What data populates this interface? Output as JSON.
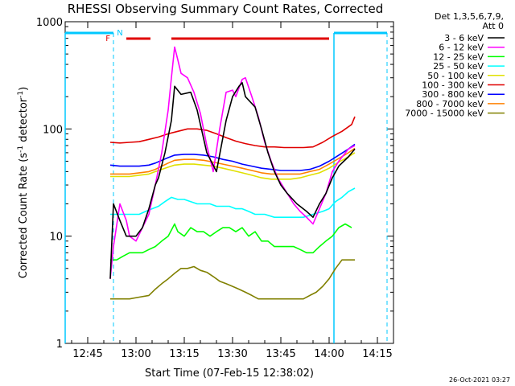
{
  "chart_data": {
    "type": "line",
    "title": "RHESSI Observing Summary Count Rates, Corrected",
    "xlabel": "Start Time (07-Feb-15 12:38:02)",
    "ylabel_main": "Corrected Count Rate (s",
    "ylabel_exp1": "-1",
    "ylabel_mid": " detector",
    "ylabel_exp2": "-1",
    "ylabel_end": ")",
    "y_scale": "log",
    "ylim": [
      1,
      1000
    ],
    "xlim_minutes": [
      38,
      140
    ],
    "x_ticks": [
      {
        "m": 45,
        "label": "12:45"
      },
      {
        "m": 60,
        "label": "13:00"
      },
      {
        "m": 75,
        "label": "13:15"
      },
      {
        "m": 90,
        "label": "13:30"
      },
      {
        "m": 105,
        "label": "13:45"
      },
      {
        "m": 120,
        "label": "14:00"
      },
      {
        "m": 135,
        "label": "14:15"
      }
    ],
    "y_ticks": [
      {
        "v": 1,
        "label": "1"
      },
      {
        "v": 10,
        "label": "10"
      },
      {
        "v": 100,
        "label": "100"
      },
      {
        "v": 1000,
        "label": "1000"
      }
    ],
    "legend_header_1": "Det 1,3,5,6,7,9,",
    "legend_header_2": "Att 0",
    "timestamp": "26-Oct-2021 03:27",
    "flags": {
      "F_label": "F",
      "N_label": "N",
      "F_color": "#e00000",
      "N_color": "#00c8ff",
      "f_segments": [
        [
          57,
          64.5
        ],
        [
          71,
          120
        ]
      ],
      "n_segments": [
        [
          38,
          53
        ],
        [
          121.5,
          138
        ]
      ],
      "dashed_vlines": [
        53,
        138
      ],
      "solid_vlines": [
        38,
        121.5
      ]
    },
    "series": [
      {
        "name": "3 - 6 keV",
        "color": "#000000",
        "points": [
          [
            52,
            4
          ],
          [
            53,
            20
          ],
          [
            55,
            14
          ],
          [
            57,
            10
          ],
          [
            60,
            10
          ],
          [
            62,
            12
          ],
          [
            64,
            18
          ],
          [
            66,
            30
          ],
          [
            67,
            35
          ],
          [
            69,
            60
          ],
          [
            71,
            120
          ],
          [
            72,
            250
          ],
          [
            74,
            210
          ],
          [
            77,
            220
          ],
          [
            79,
            150
          ],
          [
            82,
            60
          ],
          [
            85,
            40
          ],
          [
            88,
            120
          ],
          [
            90,
            200
          ],
          [
            92,
            250
          ],
          [
            93,
            270
          ],
          [
            94,
            200
          ],
          [
            97,
            160
          ],
          [
            99,
            100
          ],
          [
            101,
            60
          ],
          [
            103,
            40
          ],
          [
            105,
            30
          ],
          [
            107,
            25
          ],
          [
            110,
            20
          ],
          [
            113,
            17
          ],
          [
            115,
            15
          ],
          [
            117,
            20
          ],
          [
            119,
            25
          ],
          [
            121,
            35
          ],
          [
            123,
            45
          ],
          [
            126,
            55
          ],
          [
            128,
            65
          ]
        ]
      },
      {
        "name": "6 - 12 keV",
        "color": "#ff00ff",
        "points": [
          [
            52,
            4
          ],
          [
            53,
            8
          ],
          [
            55,
            20
          ],
          [
            57,
            14
          ],
          [
            58,
            10
          ],
          [
            60,
            9
          ],
          [
            62,
            12
          ],
          [
            64,
            16
          ],
          [
            66,
            30
          ],
          [
            68,
            60
          ],
          [
            70,
            150
          ],
          [
            71,
            300
          ],
          [
            72,
            580
          ],
          [
            73,
            440
          ],
          [
            74,
            330
          ],
          [
            76,
            300
          ],
          [
            78,
            220
          ],
          [
            80,
            140
          ],
          [
            82,
            70
          ],
          [
            84,
            40
          ],
          [
            86,
            100
          ],
          [
            88,
            220
          ],
          [
            90,
            230
          ],
          [
            91,
            200
          ],
          [
            93,
            290
          ],
          [
            94,
            300
          ],
          [
            96,
            200
          ],
          [
            98,
            130
          ],
          [
            100,
            75
          ],
          [
            102,
            50
          ],
          [
            104,
            35
          ],
          [
            107,
            25
          ],
          [
            109,
            20
          ],
          [
            111,
            17
          ],
          [
            113,
            15
          ],
          [
            115,
            13
          ],
          [
            117,
            18
          ],
          [
            119,
            25
          ],
          [
            121,
            40
          ],
          [
            123,
            50
          ],
          [
            126,
            65
          ],
          [
            128,
            70
          ]
        ]
      },
      {
        "name": "12 - 25 keV",
        "color": "#00ff00",
        "points": [
          [
            52,
            6
          ],
          [
            54,
            6
          ],
          [
            56,
            6.5
          ],
          [
            58,
            7
          ],
          [
            60,
            7
          ],
          [
            62,
            7
          ],
          [
            64,
            7.5
          ],
          [
            66,
            8
          ],
          [
            68,
            9
          ],
          [
            70,
            10
          ],
          [
            72,
            13
          ],
          [
            73,
            11
          ],
          [
            75,
            10
          ],
          [
            77,
            12
          ],
          [
            79,
            11
          ],
          [
            81,
            11
          ],
          [
            83,
            10
          ],
          [
            85,
            11
          ],
          [
            87,
            12
          ],
          [
            89,
            12
          ],
          [
            91,
            11
          ],
          [
            93,
            12
          ],
          [
            95,
            10
          ],
          [
            97,
            11
          ],
          [
            99,
            9
          ],
          [
            101,
            9
          ],
          [
            103,
            8
          ],
          [
            105,
            8
          ],
          [
            107,
            8
          ],
          [
            109,
            8
          ],
          [
            111,
            7.5
          ],
          [
            113,
            7
          ],
          [
            115,
            7
          ],
          [
            117,
            8
          ],
          [
            119,
            9
          ],
          [
            121,
            10
          ],
          [
            123,
            12
          ],
          [
            125,
            13
          ],
          [
            127,
            12
          ]
        ]
      },
      {
        "name": "25 - 50 keV",
        "color": "#00ffff",
        "points": [
          [
            52,
            16
          ],
          [
            55,
            16
          ],
          [
            58,
            16
          ],
          [
            61,
            16
          ],
          [
            63,
            17
          ],
          [
            65,
            18
          ],
          [
            67,
            19
          ],
          [
            69,
            21
          ],
          [
            71,
            23
          ],
          [
            73,
            22
          ],
          [
            75,
            22
          ],
          [
            77,
            21
          ],
          [
            79,
            20
          ],
          [
            81,
            20
          ],
          [
            83,
            20
          ],
          [
            85,
            19
          ],
          [
            87,
            19
          ],
          [
            89,
            19
          ],
          [
            91,
            18
          ],
          [
            93,
            18
          ],
          [
            95,
            17
          ],
          [
            97,
            16
          ],
          [
            100,
            16
          ],
          [
            103,
            15
          ],
          [
            106,
            15
          ],
          [
            109,
            15
          ],
          [
            112,
            15
          ],
          [
            115,
            16
          ],
          [
            118,
            17
          ],
          [
            120,
            18
          ],
          [
            122,
            21
          ],
          [
            124,
            23
          ],
          [
            126,
            26
          ],
          [
            128,
            28
          ]
        ]
      },
      {
        "name": "50 - 100 keV",
        "color": "#e0e000",
        "points": [
          [
            52,
            36
          ],
          [
            55,
            36
          ],
          [
            58,
            36
          ],
          [
            61,
            37
          ],
          [
            64,
            38
          ],
          [
            66,
            40
          ],
          [
            68,
            42
          ],
          [
            70,
            44
          ],
          [
            72,
            46
          ],
          [
            75,
            47
          ],
          [
            78,
            47
          ],
          [
            81,
            46
          ],
          [
            84,
            45
          ],
          [
            87,
            43
          ],
          [
            90,
            41
          ],
          [
            93,
            39
          ],
          [
            96,
            37
          ],
          [
            99,
            35
          ],
          [
            102,
            34
          ],
          [
            105,
            34
          ],
          [
            108,
            34
          ],
          [
            111,
            35
          ],
          [
            114,
            37
          ],
          [
            117,
            39
          ],
          [
            120,
            43
          ],
          [
            123,
            49
          ],
          [
            126,
            55
          ],
          [
            128,
            60
          ]
        ]
      },
      {
        "name": "100 - 300 keV",
        "color": "#e00000",
        "points": [
          [
            52,
            75
          ],
          [
            55,
            74
          ],
          [
            58,
            75
          ],
          [
            61,
            76
          ],
          [
            64,
            80
          ],
          [
            67,
            84
          ],
          [
            70,
            90
          ],
          [
            73,
            95
          ],
          [
            76,
            100
          ],
          [
            79,
            100
          ],
          [
            82,
            97
          ],
          [
            85,
            90
          ],
          [
            88,
            83
          ],
          [
            91,
            77
          ],
          [
            94,
            73
          ],
          [
            97,
            70
          ],
          [
            100,
            68
          ],
          [
            103,
            68
          ],
          [
            106,
            67
          ],
          [
            109,
            67
          ],
          [
            112,
            67
          ],
          [
            115,
            68
          ],
          [
            118,
            75
          ],
          [
            121,
            85
          ],
          [
            124,
            95
          ],
          [
            127,
            110
          ],
          [
            128,
            130
          ]
        ]
      },
      {
        "name": "300 - 800 keV",
        "color": "#0000ff",
        "points": [
          [
            52,
            46
          ],
          [
            55,
            45
          ],
          [
            58,
            45
          ],
          [
            61,
            45
          ],
          [
            64,
            46
          ],
          [
            66,
            48
          ],
          [
            68,
            51
          ],
          [
            70,
            54
          ],
          [
            72,
            57
          ],
          [
            75,
            58
          ],
          [
            78,
            58
          ],
          [
            81,
            57
          ],
          [
            84,
            55
          ],
          [
            87,
            52
          ],
          [
            90,
            50
          ],
          [
            93,
            47
          ],
          [
            96,
            45
          ],
          [
            99,
            43
          ],
          [
            102,
            42
          ],
          [
            105,
            41
          ],
          [
            108,
            41
          ],
          [
            111,
            41
          ],
          [
            114,
            42
          ],
          [
            117,
            45
          ],
          [
            120,
            50
          ],
          [
            123,
            57
          ],
          [
            126,
            65
          ],
          [
            128,
            72
          ]
        ]
      },
      {
        "name": "800 - 7000 keV",
        "color": "#ff8000",
        "points": [
          [
            52,
            38
          ],
          [
            55,
            38
          ],
          [
            58,
            38
          ],
          [
            61,
            39
          ],
          [
            64,
            40
          ],
          [
            66,
            42
          ],
          [
            68,
            45
          ],
          [
            70,
            48
          ],
          [
            72,
            51
          ],
          [
            75,
            52
          ],
          [
            78,
            52
          ],
          [
            81,
            51
          ],
          [
            84,
            49
          ],
          [
            87,
            47
          ],
          [
            90,
            45
          ],
          [
            93,
            43
          ],
          [
            96,
            41
          ],
          [
            99,
            39
          ],
          [
            102,
            38
          ],
          [
            105,
            38
          ],
          [
            108,
            38
          ],
          [
            111,
            38
          ],
          [
            114,
            40
          ],
          [
            117,
            42
          ],
          [
            120,
            47
          ],
          [
            123,
            53
          ],
          [
            126,
            60
          ],
          [
            128,
            66
          ]
        ]
      },
      {
        "name": "7000 - 15000 keV",
        "color": "#808000",
        "points": [
          [
            52,
            2.6
          ],
          [
            55,
            2.6
          ],
          [
            58,
            2.6
          ],
          [
            61,
            2.7
          ],
          [
            64,
            2.8
          ],
          [
            66,
            3.2
          ],
          [
            68,
            3.6
          ],
          [
            70,
            4
          ],
          [
            72,
            4.5
          ],
          [
            74,
            5
          ],
          [
            76,
            5
          ],
          [
            78,
            5.2
          ],
          [
            80,
            4.8
          ],
          [
            82,
            4.6
          ],
          [
            84,
            4.2
          ],
          [
            86,
            3.8
          ],
          [
            88,
            3.6
          ],
          [
            90,
            3.4
          ],
          [
            92,
            3.2
          ],
          [
            94,
            3
          ],
          [
            96,
            2.8
          ],
          [
            98,
            2.6
          ],
          [
            100,
            2.6
          ],
          [
            102,
            2.6
          ],
          [
            104,
            2.6
          ],
          [
            106,
            2.6
          ],
          [
            108,
            2.6
          ],
          [
            110,
            2.6
          ],
          [
            112,
            2.6
          ],
          [
            114,
            2.8
          ],
          [
            116,
            3
          ],
          [
            118,
            3.4
          ],
          [
            120,
            4
          ],
          [
            122,
            5
          ],
          [
            124,
            6
          ],
          [
            126,
            6
          ],
          [
            128,
            6
          ]
        ]
      }
    ]
  }
}
